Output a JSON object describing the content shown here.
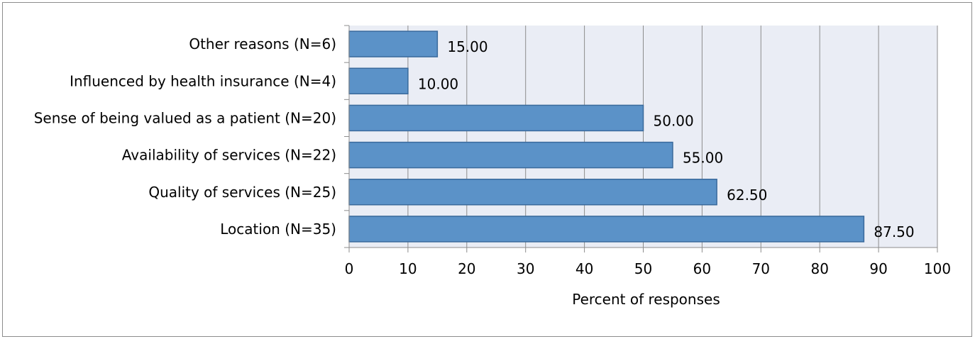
{
  "chart_data": {
    "type": "bar",
    "orientation": "horizontal",
    "categories": [
      "Other reasons (N=6)",
      "Influenced by health insurance (N=4)",
      "Sense of being valued as a patient (N=20)",
      "Availability of services (N=22)",
      "Quality of services (N=25)",
      "Location (N=35)"
    ],
    "values": [
      15.0,
      10.0,
      50.0,
      55.0,
      62.5,
      87.5
    ],
    "data_labels": [
      "15.00",
      "10.00",
      "50.00",
      "55.00",
      "62.50",
      "87.50"
    ],
    "xlabel": "Percent of responses",
    "ylabel": "",
    "xlim": [
      0,
      100
    ],
    "xticks": [
      0,
      10,
      20,
      30,
      40,
      50,
      60,
      70,
      80,
      90,
      100
    ],
    "grid": "vertical",
    "legend": "none",
    "colors": {
      "bar_fill": "#5b92c8",
      "bar_stroke": "#3a6a9c",
      "plot_background": "#eaedf5",
      "gridline": "#8c8c8c"
    }
  }
}
